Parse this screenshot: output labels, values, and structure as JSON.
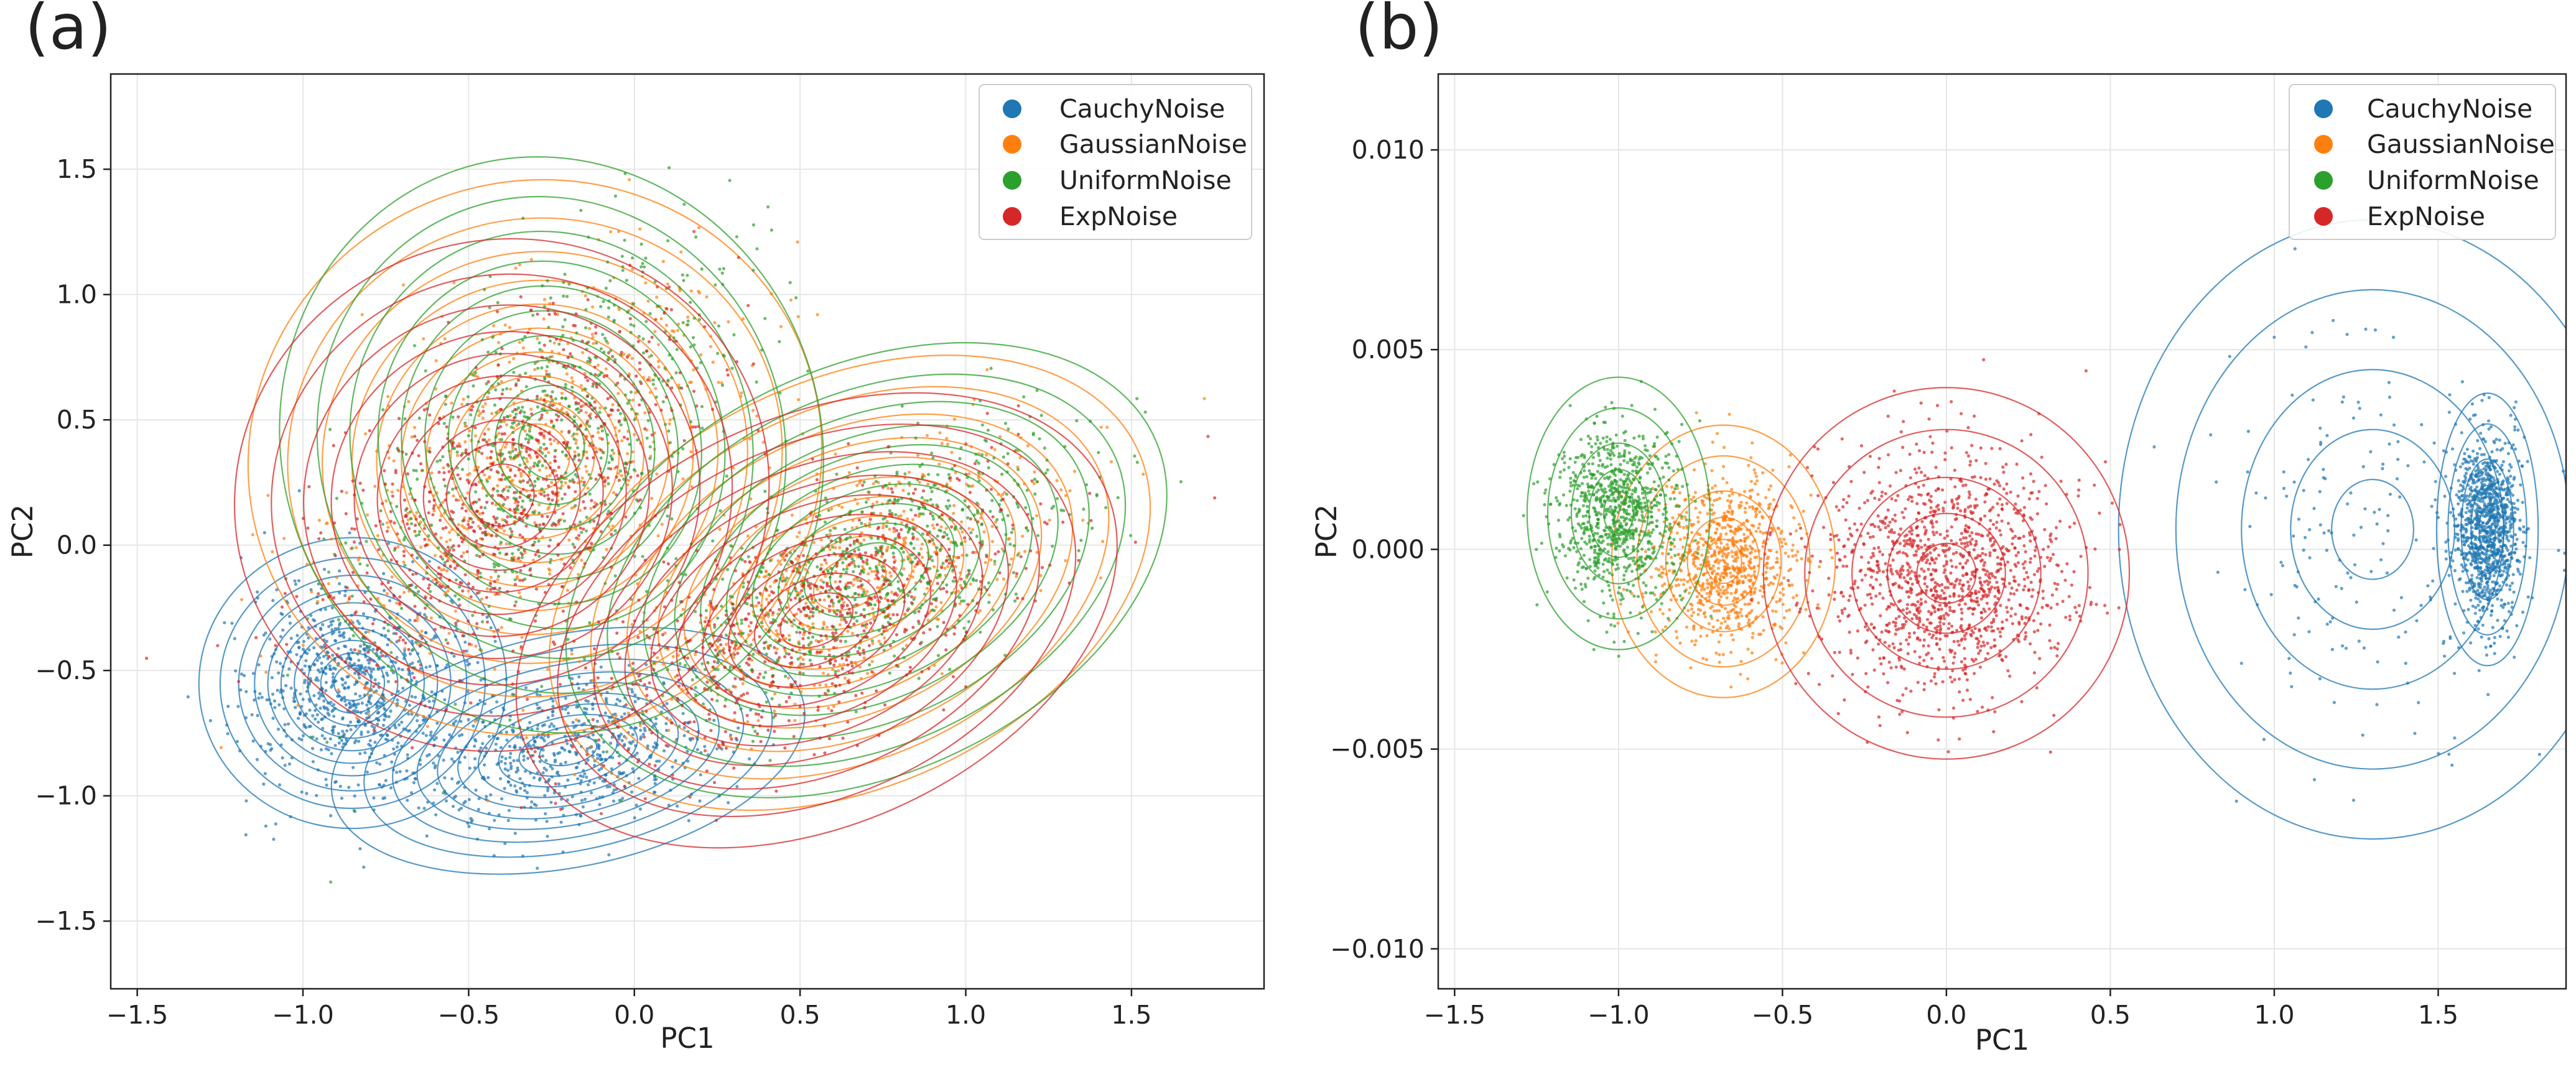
{
  "colors": {
    "CauchyNoise": "#1f77b4",
    "GaussianNoise": "#ff7f0e",
    "UniformNoise": "#2ca02c",
    "ExpNoise": "#d62728"
  },
  "chart_data": [
    {
      "type": "scatter",
      "panel_label": "(a)",
      "xlabel": "PC1",
      "ylabel": "PC2",
      "xlim": [
        -1.58,
        1.9
      ],
      "ylim": [
        -1.77,
        1.88
      ],
      "xticks": [
        -1.5,
        -1.0,
        -0.5,
        0.0,
        0.5,
        1.0,
        1.5
      ],
      "xtick_labels": [
        "−1.5",
        "−1.0",
        "−0.5",
        "0.0",
        "0.5",
        "1.0",
        "1.5"
      ],
      "yticks": [
        -1.5,
        -1.0,
        -0.5,
        0.0,
        0.5,
        1.0,
        1.5
      ],
      "ytick_labels": [
        "−1.5",
        "−1.0",
        "−0.5",
        "0.0",
        "0.5",
        "1.0",
        "1.5"
      ],
      "grid": true,
      "legend_position": "top-right",
      "density_contours": true,
      "series": [
        {
          "name": "CauchyNoise",
          "color": "#1f77b4",
          "clusters": [
            {
              "center": [
                -0.85,
                -0.55
              ],
              "spread": [
                0.16,
                0.2
              ],
              "corr": 0.1,
              "weight": 0.55
            },
            {
              "center": [
                -0.2,
                -0.82
              ],
              "spread": [
                0.25,
                0.16
              ],
              "corr": 0.3,
              "weight": 0.45
            }
          ]
        },
        {
          "name": "GaussianNoise",
          "color": "#ff7f0e",
          "clusters": [
            {
              "center": [
                -0.3,
                0.35
              ],
              "spread": [
                0.3,
                0.38
              ],
              "corr": 0.55,
              "weight": 0.5
            },
            {
              "center": [
                0.65,
                -0.15
              ],
              "spread": [
                0.33,
                0.28
              ],
              "corr": 0.65,
              "weight": 0.5
            }
          ]
        },
        {
          "name": "UniformNoise",
          "color": "#2ca02c",
          "clusters": [
            {
              "center": [
                -0.25,
                0.4
              ],
              "spread": [
                0.28,
                0.4
              ],
              "corr": 0.55,
              "weight": 0.5
            },
            {
              "center": [
                0.7,
                -0.1
              ],
              "spread": [
                0.33,
                0.28
              ],
              "corr": 0.65,
              "weight": 0.5
            }
          ]
        },
        {
          "name": "ExpNoise",
          "color": "#d62728",
          "clusters": [
            {
              "center": [
                -0.4,
                0.2
              ],
              "spread": [
                0.28,
                0.35
              ],
              "corr": 0.55,
              "weight": 0.5
            },
            {
              "center": [
                0.55,
                -0.3
              ],
              "spread": [
                0.33,
                0.28
              ],
              "corr": 0.65,
              "weight": 0.5
            }
          ]
        }
      ]
    },
    {
      "type": "scatter",
      "panel_label": "(b)",
      "xlabel": "PC1",
      "ylabel": "PC2",
      "xlim": [
        -1.55,
        1.89
      ],
      "ylim": [
        -0.011,
        0.0119
      ],
      "xticks": [
        -1.5,
        -1.0,
        -0.5,
        0.0,
        0.5,
        1.0,
        1.5
      ],
      "xtick_labels": [
        "−1.5",
        "−1.0",
        "−0.5",
        "0.0",
        "0.5",
        "1.0",
        "1.5"
      ],
      "yticks": [
        -0.01,
        -0.005,
        0.0,
        0.005,
        0.01
      ],
      "ytick_labels": [
        "−0.010",
        "−0.005",
        "0.000",
        "0.005",
        "0.010"
      ],
      "grid": true,
      "legend_position": "top-right",
      "density_contours": true,
      "series": [
        {
          "name": "CauchyNoise",
          "color": "#1f77b4",
          "clusters": [
            {
              "center": [
                1.65,
                0.0005
              ],
              "spread": [
                0.05,
                0.0011
              ],
              "corr": 0.0,
              "weight": 0.85
            },
            {
              "center": [
                1.3,
                0.0005
              ],
              "spread": [
                0.25,
                0.0025
              ],
              "corr": 0.0,
              "weight": 0.15
            }
          ]
        },
        {
          "name": "GaussianNoise",
          "color": "#ff7f0e",
          "clusters": [
            {
              "center": [
                -0.68,
                -0.0003
              ],
              "spread": [
                0.11,
                0.0011
              ],
              "corr": 0.0,
              "weight": 1.0
            }
          ]
        },
        {
          "name": "UniformNoise",
          "color": "#2ca02c",
          "clusters": [
            {
              "center": [
                -1.0,
                0.0009
              ],
              "spread": [
                0.09,
                0.0011
              ],
              "corr": 0.0,
              "weight": 1.0
            }
          ]
        },
        {
          "name": "ExpNoise",
          "color": "#d62728",
          "clusters": [
            {
              "center": [
                0.0,
                -0.0006
              ],
              "spread": [
                0.18,
                0.0015
              ],
              "corr": 0.0,
              "weight": 1.0
            }
          ]
        }
      ]
    }
  ]
}
